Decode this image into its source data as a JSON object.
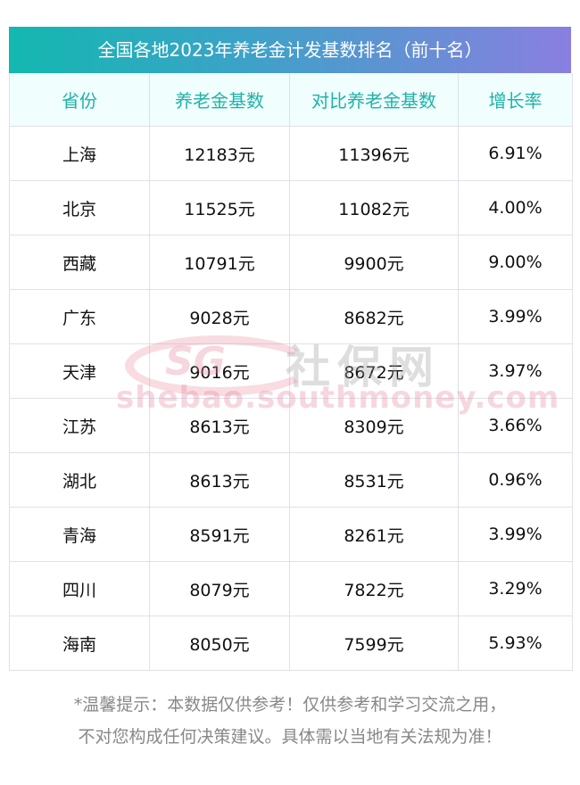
{
  "title": "全国各地2023年养老金计发基数排名（前十名）",
  "headers": [
    "省份",
    "养老金基数",
    "对比养老金基数",
    "增长率"
  ],
  "rows": [
    [
      "上海",
      "12183元",
      "11396元",
      "6.91%"
    ],
    [
      "北京",
      "11525元",
      "11082元",
      "4.00%"
    ],
    [
      "西藏",
      "10791元",
      "9900元",
      "9.00%"
    ],
    [
      "广东",
      "9028元",
      "8682元",
      "3.99%"
    ],
    [
      "天津",
      "9016元",
      "8672元",
      "3.97%"
    ],
    [
      "江苏",
      "8613元",
      "8309元",
      "3.66%"
    ],
    [
      "湖北",
      "8613元",
      "8531元",
      "0.96%"
    ],
    [
      "青海",
      "8591元",
      "8261元",
      "3.99%"
    ],
    [
      "四川",
      "8079元",
      "7822元",
      "3.29%"
    ],
    [
      "海南",
      "8050元",
      "7599元",
      "5.93%"
    ]
  ],
  "watermark": {
    "logo": "SG",
    "name": "社保网",
    "url": "shebao.southmoney.com"
  },
  "note": [
    "*温馨提示：本数据仅供参考！仅供参考和学习交流之用，",
    "不对您构成任何决策建议。具体需以当地有关法规为准！"
  ],
  "colors": {
    "header_text": "#1fb2a8",
    "gradient_start": "#13b8b0",
    "gradient_end": "#8a7fe0"
  }
}
